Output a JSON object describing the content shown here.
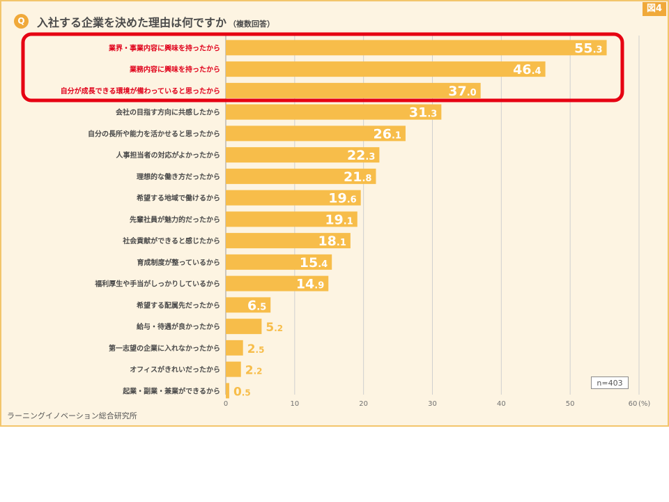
{
  "header": {
    "badge": "Q",
    "title": "入社する企業を決めた理由は何ですか",
    "subtitle": "（複数回答）",
    "figure_no": "図4"
  },
  "footer": {
    "sample_size": "n=403",
    "source": "ラーニングイノベーション総合研究所"
  },
  "colors": {
    "bar": "#f7bd4a",
    "background": "#fdf4e2",
    "accent": "#f0a93a",
    "highlight_frame": "#e60012"
  },
  "chart_data": {
    "type": "bar",
    "orientation": "horizontal",
    "title": "入社する企業を決めた理由は何ですか（複数回答）",
    "xlabel": "",
    "ylabel": "",
    "unit_label": "(%)",
    "xlim": [
      0,
      60
    ],
    "xticks": [
      0,
      10,
      20,
      30,
      40,
      50,
      60
    ],
    "grid": true,
    "highlighted_categories": 3,
    "categories": [
      "業界・事業内容に興味を持ったから",
      "業務内容に興味を持ったから",
      "自分が成長できる環境が備わっていると思ったから",
      "会社の目指す方向に共感したから",
      "自分の長所や能力を活かせると思ったから",
      "人事担当者の対応がよかったから",
      "理想的な働き方だったから",
      "希望する地域で働けるから",
      "先輩社員が魅力的だったから",
      "社会貢献ができると感じたから",
      "育成制度が整っているから",
      "福利厚生や手当がしっかりしているから",
      "希望する配属先だったから",
      "給与・待遇が良かったから",
      "第一志望の企業に入れなかったから",
      "オフィスがきれいだったから",
      "起業・副業・兼業ができるから"
    ],
    "values": [
      55.3,
      46.4,
      37.0,
      31.3,
      26.1,
      22.3,
      21.8,
      19.6,
      19.1,
      18.1,
      15.4,
      14.9,
      6.5,
      5.2,
      2.5,
      2.2,
      0.5
    ]
  }
}
